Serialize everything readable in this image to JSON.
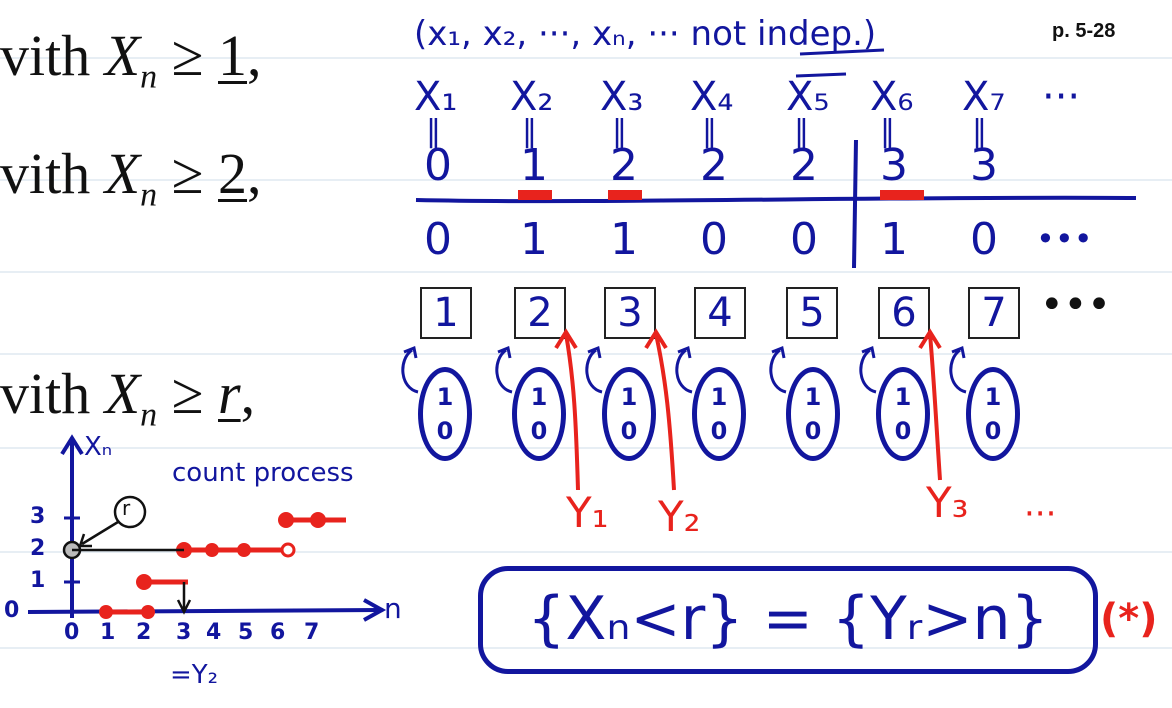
{
  "page_number": "p. 5-28",
  "tex_lines": [
    {
      "prefix": "vith ",
      "var": "X",
      "sub": "n",
      "rel": " ≥ ",
      "val": "1",
      "tail": ","
    },
    {
      "prefix": "vith ",
      "var": "X",
      "sub": "n",
      "rel": " ≥ ",
      "val": "2",
      "tail": ","
    },
    {
      "prefix": "vith ",
      "var": "X",
      "sub": "n",
      "rel": " ≥ ",
      "val": "r",
      "tail": ","
    }
  ],
  "header_note": "(x₁, x₂, ···, xₙ, ··· not indep.)",
  "variables": [
    "X₁",
    "X₂",
    "X₃",
    "X₄",
    "X₅",
    "X₆",
    "X₇",
    "···"
  ],
  "counts": [
    "0",
    "1",
    "2",
    "2",
    "2",
    "3",
    "3"
  ],
  "increments": [
    "0",
    "1",
    "1",
    "0",
    "0",
    "1",
    "0",
    "•••"
  ],
  "trials": [
    "1",
    "2",
    "3",
    "4",
    "5",
    "6",
    "7",
    "•••"
  ],
  "coin_faces": {
    "top": "1",
    "bottom": "0"
  },
  "arrivals": [
    "Y₁",
    "Y₂",
    "Y₃",
    "···"
  ],
  "graph": {
    "ylabel": "Xₙ",
    "xlabel": "n",
    "title": "count process",
    "r_marker": "r",
    "y_ticks": [
      "0",
      "1",
      "2",
      "3"
    ],
    "x_ticks": [
      "0",
      "1",
      "2",
      "3",
      "4",
      "5",
      "6",
      "7"
    ],
    "below_axis_note": "=Y₂",
    "steps": [
      {
        "from": 0,
        "to": 2,
        "level": 0
      },
      {
        "from": 2,
        "to": 3,
        "level": 1
      },
      {
        "from": 3,
        "to": 6,
        "level": 2
      },
      {
        "from": 6,
        "to": 7,
        "level": 3
      }
    ]
  },
  "equation": "{Xₙ<r} = {Yᵣ>n}",
  "equation_tag": "(*)",
  "colors": {
    "ink": "#12169e",
    "accent": "#e8231d",
    "rule": "#c9d9ea"
  }
}
